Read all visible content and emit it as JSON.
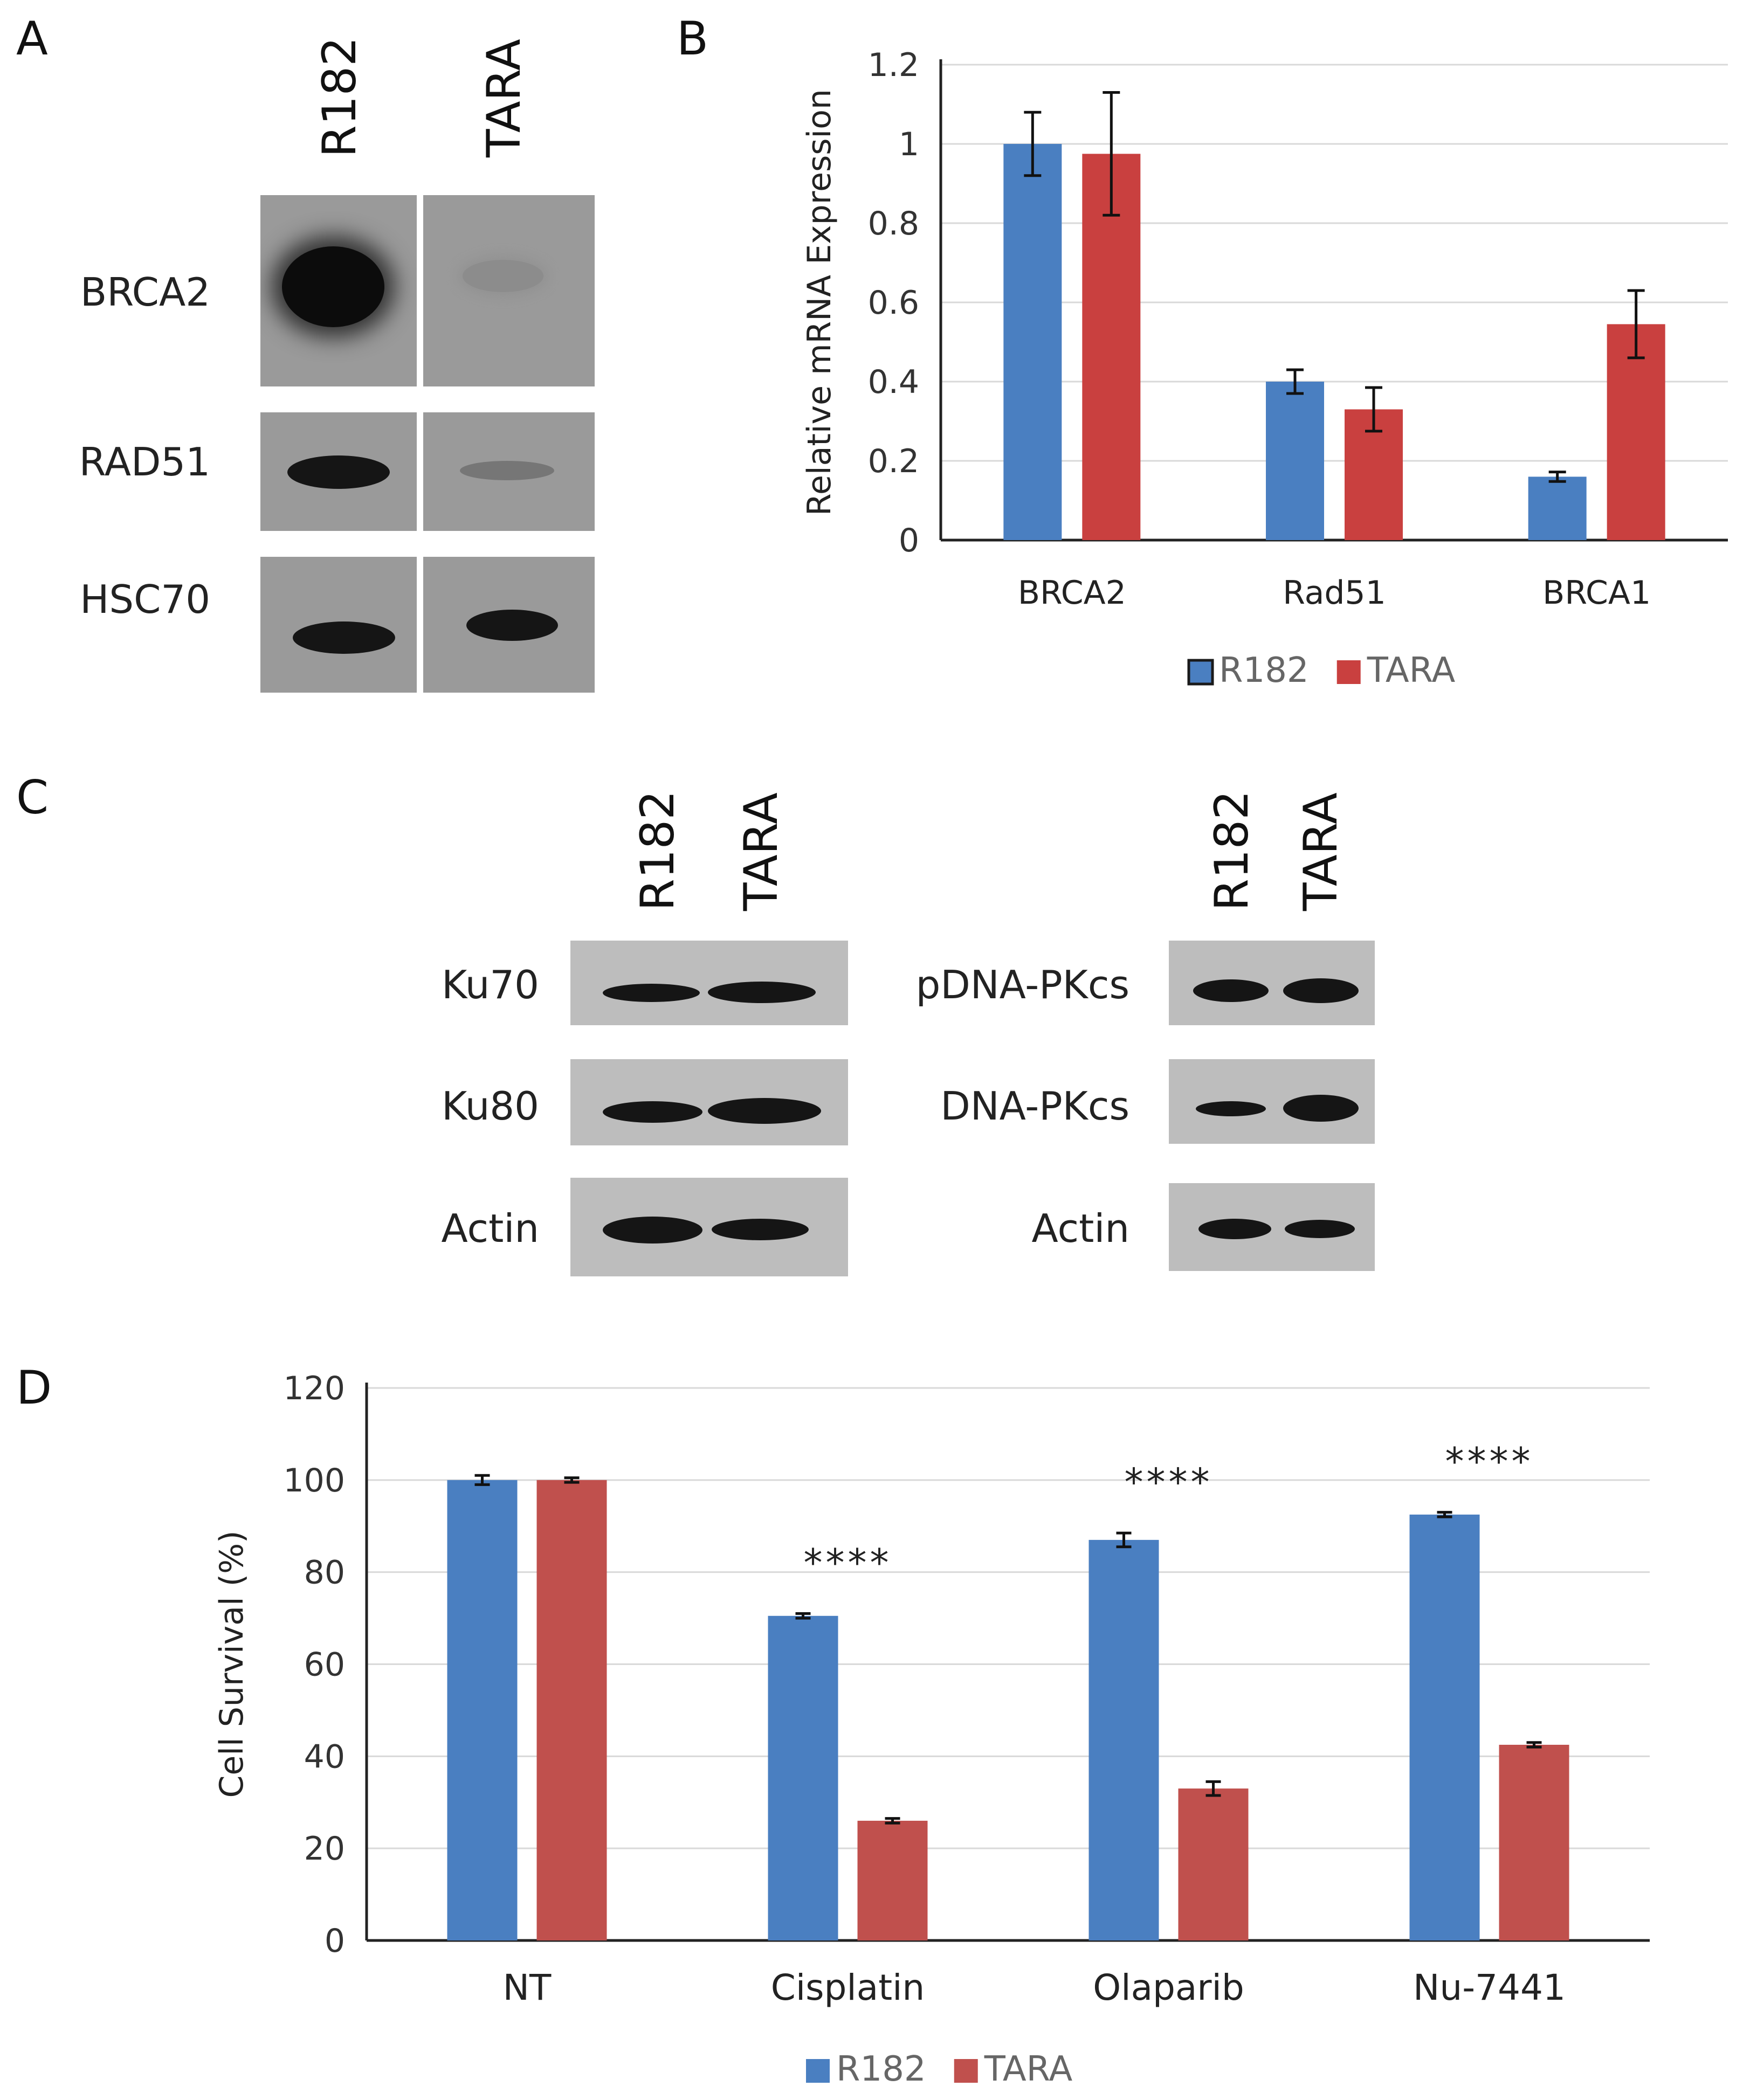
{
  "panel_letters": [
    "A",
    "B",
    "C",
    "D"
  ],
  "panel_a": {
    "lanes": [
      "R182",
      "TARA"
    ],
    "rows": [
      "BRCA2",
      "RAD51",
      "HSC70"
    ]
  },
  "panel_c_left": {
    "lanes": [
      "R182",
      "TARA"
    ],
    "rows": [
      "Ku70",
      "Ku80",
      "Actin"
    ]
  },
  "panel_c_right": {
    "lanes": [
      "R182",
      "TARA"
    ],
    "rows": [
      "pDNA-PKcs",
      "DNA-PKcs",
      "Actin"
    ]
  },
  "colors": {
    "R182": "#4a7fc1",
    "TARA": "#c9403f",
    "TARA_D": "#c0504d"
  },
  "chart_data": [
    {
      "id": "B",
      "type": "bar",
      "categories": [
        "BRCA2",
        "Rad51",
        "BRCA1"
      ],
      "series": [
        {
          "name": "R182",
          "values": [
            1.0,
            0.4,
            0.16
          ],
          "errors": [
            0.08,
            0.03,
            0.012
          ]
        },
        {
          "name": "TARA",
          "values": [
            0.975,
            0.33,
            0.545
          ],
          "errors": [
            0.155,
            0.055,
            0.085
          ]
        }
      ],
      "ylabel": "Relative  mRNA Expression",
      "yticks": [
        "0",
        "0.2",
        "0.4",
        "0.6",
        "0.8",
        "1",
        "1.2"
      ],
      "ylim": [
        0,
        1.2
      ],
      "grid": true,
      "legend": "bottom"
    },
    {
      "id": "D",
      "type": "bar",
      "categories": [
        "NT",
        "Cisplatin",
        "Olaparib",
        "Nu-7441"
      ],
      "series": [
        {
          "name": "R182",
          "values": [
            100,
            70.5,
            87,
            92.5
          ],
          "errors": [
            1.0,
            0.5,
            1.5,
            0.5
          ]
        },
        {
          "name": "TARA",
          "values": [
            100,
            26,
            33,
            42.5
          ],
          "errors": [
            0.5,
            0.5,
            1.5,
            0.5
          ]
        }
      ],
      "annotations": [
        "",
        "****",
        "****",
        "****"
      ],
      "ylabel": "Cell Survival (%)",
      "yticks": [
        "0",
        "20",
        "40",
        "60",
        "80",
        "100",
        "120"
      ],
      "ylim": [
        0,
        120
      ],
      "grid": true,
      "legend": "bottom"
    }
  ]
}
